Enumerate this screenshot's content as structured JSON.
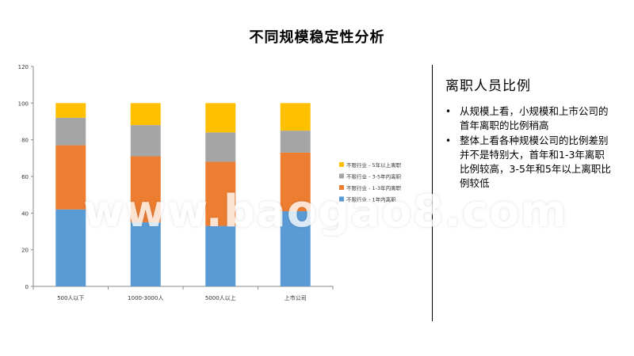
{
  "title": "不同规模稳定性分析",
  "panel": {
    "title": "离职人员比例",
    "bullets": [
      "从规模上看，小规模和上市公司的首年离职的比例稍高",
      "整体上看各种规模公司的比例差别并不是特别大，首年和1-3年离职比例较高，3-5年和5年以上离职比例较低"
    ]
  },
  "watermark": "www.baogao8.com",
  "chart_data": {
    "type": "bar",
    "stacked": true,
    "categories": [
      "500人以下",
      "1000-3000人",
      "5000人以上",
      "上市公司"
    ],
    "series": [
      {
        "name": "不限行业 - 1年内离职",
        "color": "#5B9BD5",
        "values": [
          42,
          35,
          33,
          41
        ]
      },
      {
        "name": "不限行业 - 1-3年内离职",
        "color": "#ED7D31",
        "values": [
          35,
          36,
          35,
          32
        ]
      },
      {
        "name": "不限行业 - 3-5年内离职",
        "color": "#A5A5A5",
        "values": [
          15,
          17,
          16,
          12
        ]
      },
      {
        "name": "不限行业 - 5年以上离职",
        "color": "#FFC000",
        "values": [
          8,
          12,
          16,
          15
        ]
      }
    ],
    "ylim": [
      0,
      120
    ],
    "yticks": [
      0,
      20,
      40,
      60,
      80,
      100,
      120
    ],
    "grid": false,
    "legend": "right"
  }
}
